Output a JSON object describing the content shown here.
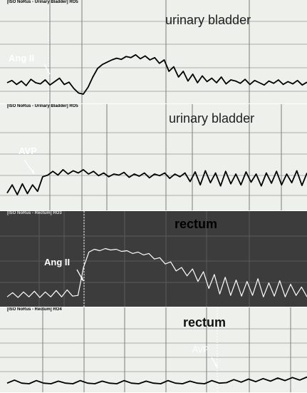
{
  "colors": {
    "light_bg": "#eef0ec",
    "light_grid": "#7a807a",
    "light_grid_minor": "#a9aeab",
    "dark_bg": "#3c3c3c",
    "dark_grid": "#5a5a5a",
    "trace_dark": "#000000",
    "trace_light": "#ffffff",
    "marker_light": "#ffffff"
  },
  "panels": [
    {
      "id": "bladder-angii",
      "header": "[ISO NoRus - Urinary Bladder] RO5",
      "title": "urinary bladder",
      "stimulus": "Ang II",
      "theme": "light"
    },
    {
      "id": "bladder-avp",
      "header": "[ISO NoRus - Urinary Bladder] RO5",
      "title": "urinary bladder",
      "stimulus": "AVP",
      "theme": "light"
    },
    {
      "id": "rectum-angii",
      "header": "[ISO NoRus - Rectum] RO3",
      "title": "rectum",
      "stimulus": "Ang II",
      "theme": "dark"
    },
    {
      "id": "rectum-avp",
      "header": "[ISO NoRus - Rectum] RO4",
      "title": "rectum",
      "stimulus": "AVP",
      "theme": "light"
    }
  ],
  "chart_data": [
    {
      "type": "line",
      "title": "urinary bladder",
      "series": [
        {
          "name": "",
          "values": [
            0.3,
            0.34,
            0.27,
            0.33,
            0.25,
            0.36,
            0.3,
            0.28,
            0.35,
            0.26,
            0.32,
            0.38,
            0.27,
            0.31,
            0.2,
            0.12,
            0.1,
            0.22,
            0.4,
            0.55,
            0.62,
            0.66,
            0.7,
            0.73,
            0.71,
            0.76,
            0.74,
            0.79,
            0.72,
            0.77,
            0.7,
            0.74,
            0.64,
            0.7,
            0.5,
            0.58,
            0.4,
            0.5,
            0.33,
            0.45,
            0.3,
            0.42,
            0.32,
            0.38,
            0.3,
            0.4,
            0.28,
            0.35,
            0.33,
            0.29,
            0.36,
            0.27,
            0.34,
            0.3,
            0.26,
            0.33,
            0.29,
            0.35,
            0.27,
            0.32,
            0.28,
            0.34,
            0.26,
            0.31
          ]
        }
      ],
      "annotation": "Ang II"
    },
    {
      "type": "line",
      "title": "urinary bladder",
      "series": [
        {
          "name": "",
          "values": [
            0.15,
            0.3,
            0.12,
            0.32,
            0.14,
            0.3,
            0.18,
            0.45,
            0.48,
            0.55,
            0.48,
            0.58,
            0.5,
            0.56,
            0.52,
            0.58,
            0.5,
            0.55,
            0.47,
            0.52,
            0.45,
            0.5,
            0.48,
            0.53,
            0.44,
            0.5,
            0.46,
            0.52,
            0.43,
            0.5,
            0.47,
            0.52,
            0.42,
            0.5,
            0.45,
            0.52,
            0.36,
            0.54,
            0.3,
            0.56,
            0.34,
            0.52,
            0.28,
            0.55,
            0.32,
            0.5,
            0.3,
            0.54,
            0.35,
            0.5,
            0.28,
            0.52,
            0.33,
            0.55,
            0.3,
            0.5,
            0.34,
            0.56,
            0.29,
            0.52
          ]
        }
      ],
      "annotation": "AVP"
    },
    {
      "type": "line",
      "title": "rectum",
      "series": [
        {
          "name": "",
          "values": [
            0.08,
            0.14,
            0.07,
            0.15,
            0.08,
            0.16,
            0.07,
            0.15,
            0.08,
            0.17,
            0.08,
            0.18,
            0.09,
            0.1,
            0.5,
            0.72,
            0.76,
            0.74,
            0.77,
            0.75,
            0.76,
            0.73,
            0.74,
            0.7,
            0.72,
            0.68,
            0.7,
            0.62,
            0.64,
            0.55,
            0.58,
            0.45,
            0.5,
            0.38,
            0.48,
            0.3,
            0.44,
            0.2,
            0.4,
            0.12,
            0.36,
            0.1,
            0.32,
            0.09,
            0.3,
            0.1,
            0.34,
            0.08,
            0.28,
            0.09,
            0.31,
            0.08,
            0.26,
            0.1,
            0.22,
            0.08
          ]
        }
      ],
      "annotation": "Ang II"
    },
    {
      "type": "line",
      "title": "rectum",
      "series": [
        {
          "name": "",
          "values": [
            0.08,
            0.14,
            0.08,
            0.07,
            0.13,
            0.08,
            0.07,
            0.12,
            0.08,
            0.07,
            0.13,
            0.08,
            0.07,
            0.12,
            0.08,
            0.07,
            0.13,
            0.08,
            0.07,
            0.12,
            0.08,
            0.07,
            0.13,
            0.08,
            0.07,
            0.12,
            0.08,
            0.07,
            0.13,
            0.08,
            0.09,
            0.15,
            0.1,
            0.16,
            0.11,
            0.17,
            0.12,
            0.18,
            0.13,
            0.19,
            0.14,
            0.2
          ]
        }
      ],
      "annotation": "AVP"
    }
  ]
}
